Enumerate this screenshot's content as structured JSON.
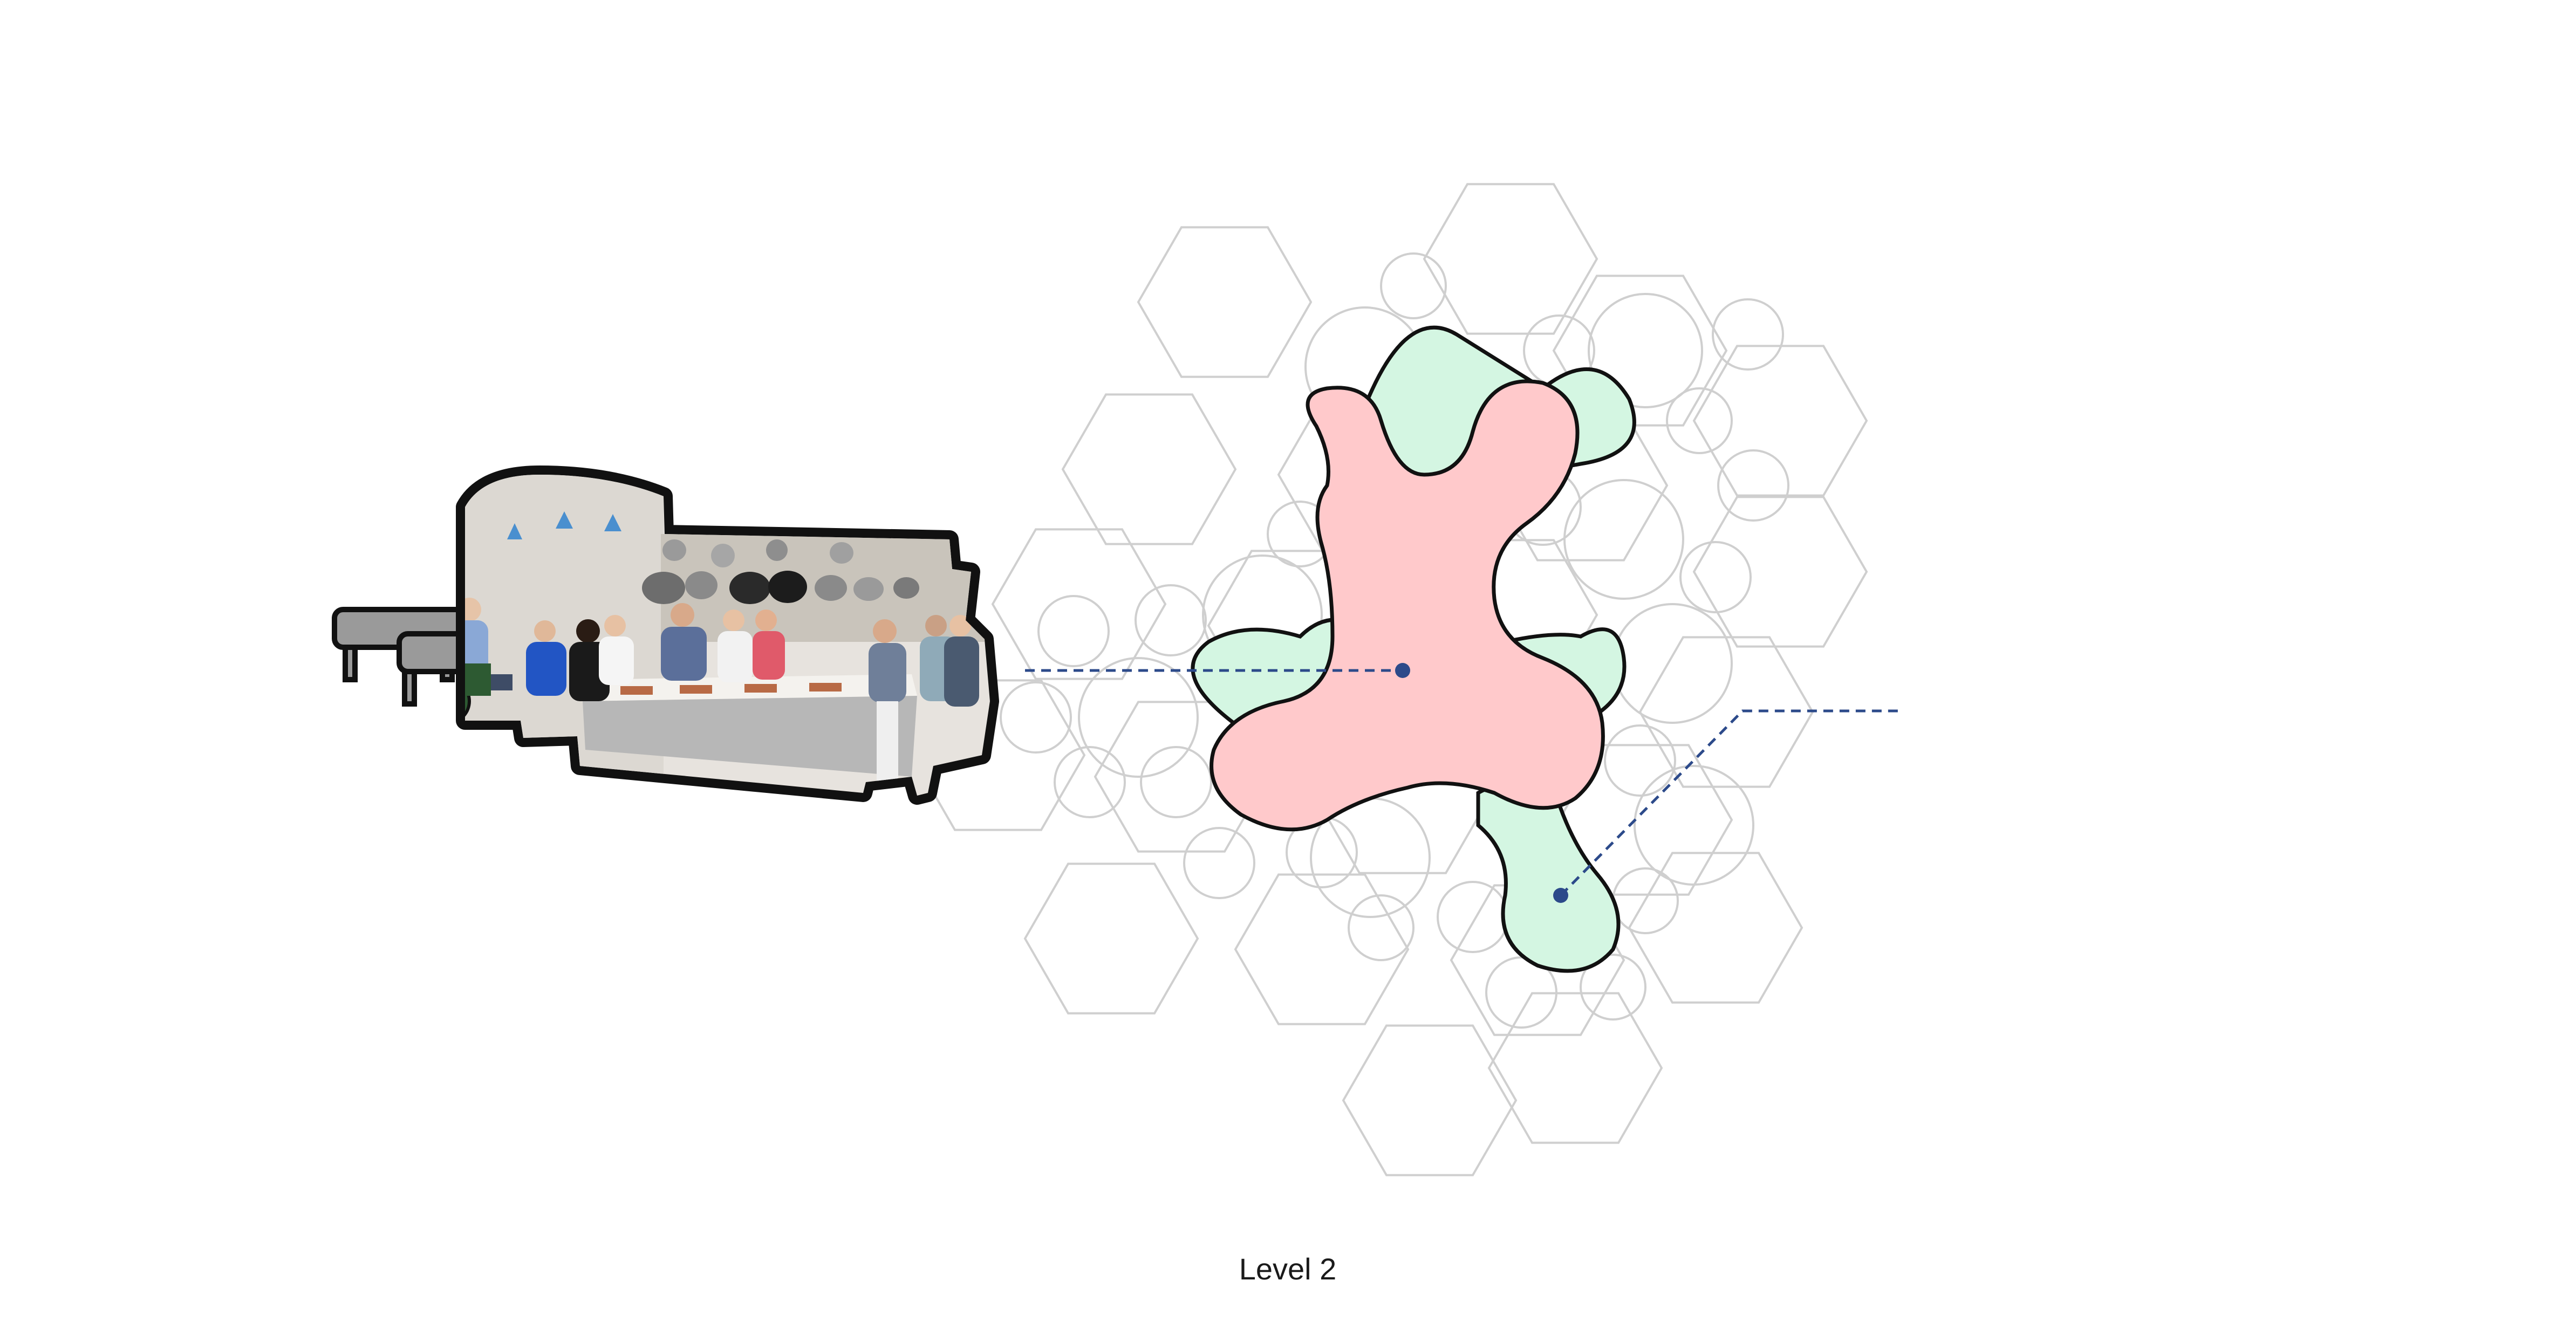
{
  "caption": "Level 2",
  "vignette": {
    "scene": "cooking-class-kitchen-photo-cutout",
    "icons": [
      "waiting-bench-icon",
      "ceiling-lamp-icon",
      "hanging-pots-icon",
      "person-icon",
      "wheelchair-icon",
      "kitchen-island-icon"
    ]
  },
  "colors": {
    "hex_grid": "#cfcfcf",
    "blob_outline": "#111111",
    "core_fill": "#ffc9cb",
    "lobe_fill": "#d4f6e2",
    "leader_line": "#2c4a8a",
    "cutout_outline": "#111111"
  }
}
